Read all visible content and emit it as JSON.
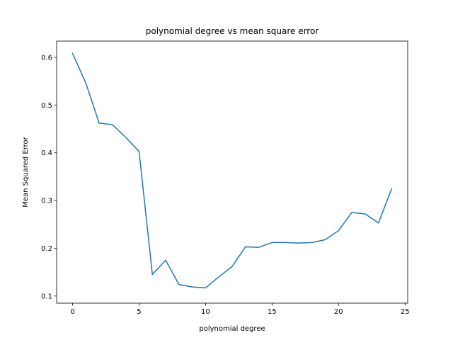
{
  "chart_data": {
    "type": "line",
    "title": "polynomial degree vs mean square error",
    "xlabel": "polynomial degree",
    "ylabel": "Mean Squared Error",
    "xlim": [
      -1.2,
      25.2
    ],
    "ylim": [
      0.085,
      0.634
    ],
    "xticks": [
      0,
      5,
      10,
      15,
      20,
      25
    ],
    "yticks": [
      0.1,
      0.2,
      0.3,
      0.4,
      0.5,
      0.6
    ],
    "xtick_labels": [
      "0",
      "5",
      "10",
      "15",
      "20",
      "25"
    ],
    "ytick_labels": [
      "0.1",
      "0.2",
      "0.3",
      "0.4",
      "0.5",
      "0.6"
    ],
    "grid": false,
    "series": [
      {
        "color": "#1f77b4",
        "x": [
          0,
          1,
          2,
          3,
          4,
          5,
          6,
          7,
          8,
          9,
          10,
          11,
          12,
          13,
          14,
          15,
          16,
          17,
          18,
          19,
          20,
          21,
          22,
          23,
          24
        ],
        "values": [
          0.608,
          0.546,
          0.462,
          0.459,
          0.432,
          0.403,
          0.145,
          0.175,
          0.124,
          0.119,
          0.117,
          0.14,
          0.162,
          0.203,
          0.202,
          0.212,
          0.212,
          0.211,
          0.212,
          0.218,
          0.237,
          0.275,
          0.272,
          0.253,
          0.325
        ]
      }
    ]
  }
}
